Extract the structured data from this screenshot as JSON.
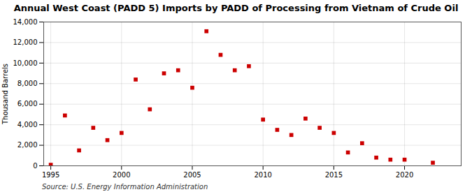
{
  "chart_data": {
    "type": "scatter",
    "title": "Annual West Coast (PADD 5) Imports by PADD of Processing from Vietnam of Crude Oil",
    "ylabel": "Thousand Barrels",
    "source": "Source: U.S. Energy Information Administration",
    "x": [
      1995,
      1996,
      1997,
      1998,
      1999,
      2000,
      2001,
      2002,
      2003,
      2004,
      2005,
      2006,
      2007,
      2008,
      2009,
      2010,
      2011,
      2012,
      2013,
      2014,
      2015,
      2016,
      2017,
      2018,
      2019,
      2020,
      2022
    ],
    "values": [
      100,
      4900,
      1500,
      3700,
      2500,
      3200,
      8400,
      5500,
      9000,
      9300,
      7600,
      13100,
      10800,
      9300,
      9700,
      4500,
      3500,
      3000,
      4600,
      3700,
      3200,
      1300,
      2200,
      800,
      600,
      600,
      300
    ],
    "color": "#cc0000",
    "marker": "square",
    "xlim": [
      1994.5,
      2024
    ],
    "xticks": [
      1995,
      2000,
      2005,
      2010,
      2015,
      2020
    ],
    "ylim": [
      0,
      14000
    ],
    "yticks": [
      0,
      {
        "value": 2000,
        "label": "2,000"
      },
      {
        "value": 4000,
        "label": "4,000"
      },
      {
        "value": 6000,
        "label": "6,000"
      },
      {
        "value": 8000,
        "label": "8,000"
      },
      {
        "value": 10000,
        "label": "10,000"
      },
      {
        "value": 12000,
        "label": "12,000"
      },
      {
        "value": 14000,
        "label": "14,000"
      }
    ],
    "grid": true
  }
}
